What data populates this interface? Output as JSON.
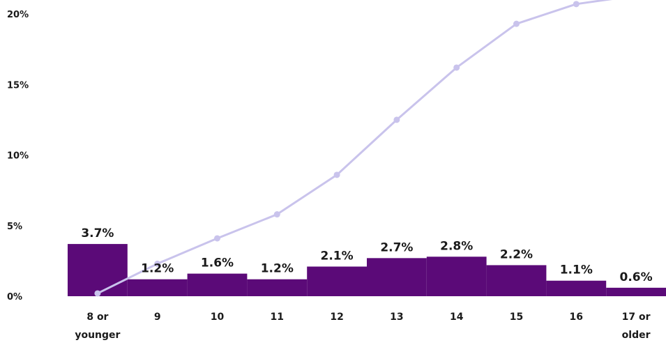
{
  "chart_data": {
    "type": "bar",
    "categories": [
      [
        "8 or",
        "younger"
      ],
      [
        "9"
      ],
      [
        "10"
      ],
      [
        "11"
      ],
      [
        "12"
      ],
      [
        "13"
      ],
      [
        "14"
      ],
      [
        "15"
      ],
      [
        "16"
      ],
      [
        "17 or",
        "older"
      ]
    ],
    "ylim": [
      0,
      20
    ],
    "yticks": [
      "0%",
      "5%",
      "10%",
      "15%",
      "20%"
    ],
    "ytick_values": [
      0,
      5,
      10,
      15,
      20
    ],
    "grid": false,
    "legend": "none",
    "series": [
      {
        "type": "bar",
        "values": [
          3.7,
          1.2,
          1.6,
          1.2,
          2.1,
          2.7,
          2.8,
          2.2,
          1.1,
          0.6
        ],
        "labels": [
          "3.7%",
          "1.2%",
          "1.6%",
          "1.2%",
          "2.1%",
          "2.7%",
          "2.8%",
          "2.2%",
          "1.1%",
          "0.6%"
        ],
        "color": "#5b0a78"
      },
      {
        "type": "line",
        "values": [
          0.2,
          2.3,
          4.1,
          5.8,
          8.6,
          12.5,
          16.2,
          19.3,
          20.7,
          21.3
        ],
        "color": "#c9c3ec"
      }
    ]
  }
}
